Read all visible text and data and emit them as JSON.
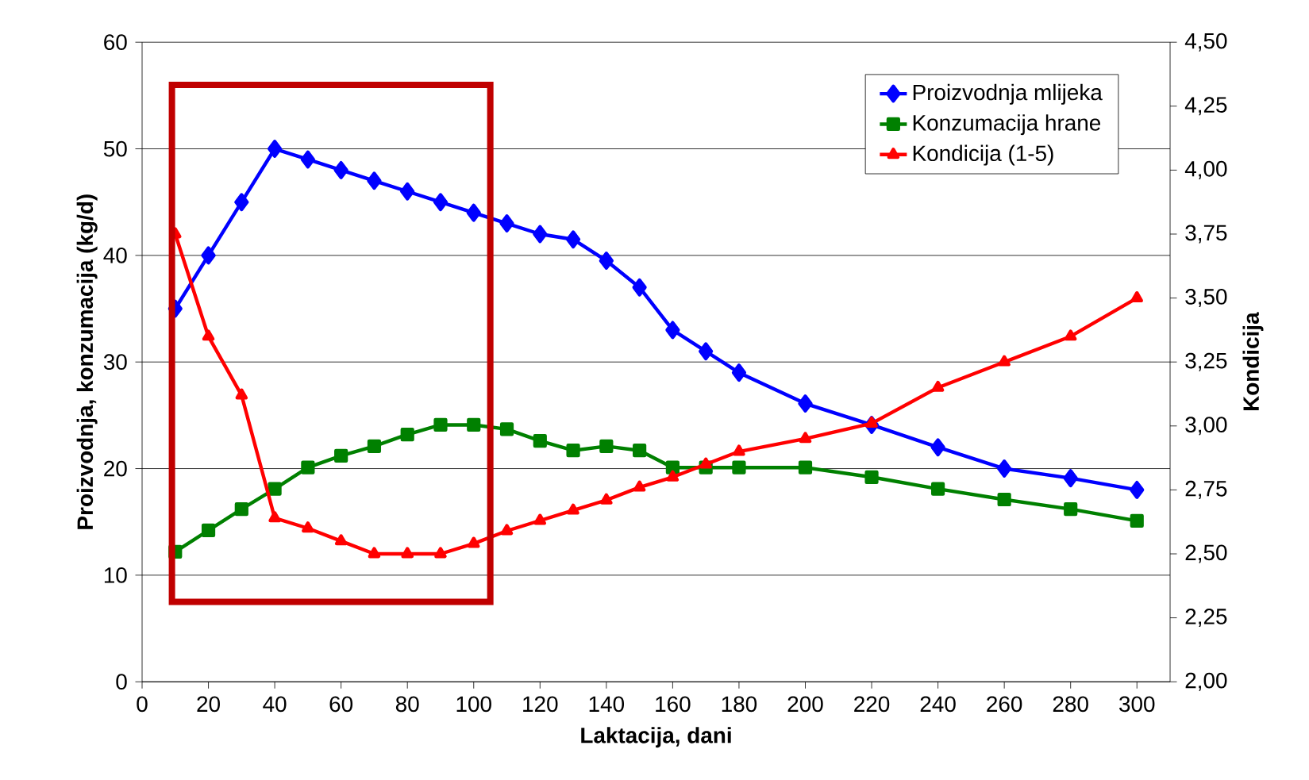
{
  "chart_data": {
    "type": "line",
    "xlabel": "Laktacija, dani",
    "ylabel": "Proizvodnja, konzumacija (kg/d)",
    "y2label": "Kondicija",
    "x": [
      10,
      20,
      30,
      40,
      50,
      60,
      70,
      80,
      90,
      100,
      110,
      120,
      130,
      140,
      150,
      160,
      170,
      180,
      200,
      220,
      240,
      260,
      280,
      300
    ],
    "series": [
      {
        "name": "Proizvodnja mlijeka",
        "color": "#0000ff",
        "marker": "diamond",
        "values": [
          35,
          40,
          45,
          50,
          49,
          48,
          47,
          46,
          45,
          44,
          43,
          42,
          41.5,
          39.5,
          37,
          33,
          31,
          29,
          26.1,
          24.1,
          22,
          20,
          19.1,
          18
        ]
      },
      {
        "name": "Konzumacija hrane",
        "color": "#008000",
        "marker": "square",
        "values": [
          12.2,
          14.2,
          16.2,
          18.1,
          20.1,
          21.2,
          22.1,
          23.2,
          24.1,
          24.1,
          23.7,
          22.6,
          21.7,
          22.1,
          21.7,
          20.1,
          20.1,
          20.1,
          20.1,
          19.2,
          18.1,
          17.1,
          16.2,
          15.1
        ]
      },
      {
        "name": "Kondicija (1-5)",
        "color": "#ff0000",
        "marker": "triangle",
        "axis": "y2",
        "values": [
          3.75,
          3.35,
          3.12,
          2.64,
          2.6,
          2.55,
          2.5,
          2.5,
          2.5,
          2.54,
          2.59,
          2.63,
          2.67,
          2.71,
          2.76,
          2.8,
          2.85,
          2.9,
          2.95,
          3.01,
          3.15,
          3.25,
          3.35,
          3.5
        ]
      }
    ],
    "xlim": [
      0,
      310
    ],
    "xticks": [
      0,
      20,
      40,
      60,
      80,
      100,
      120,
      140,
      160,
      180,
      200,
      220,
      240,
      260,
      280,
      300
    ],
    "ylim": [
      0,
      60
    ],
    "yticks": [
      0,
      10,
      20,
      30,
      40,
      50,
      60
    ],
    "y2lim": [
      2,
      4.5
    ],
    "y2ticks": [
      {
        "value": 2,
        "label": "2,00"
      },
      {
        "value": 2.25,
        "label": "2,25"
      },
      {
        "value": 2.5,
        "label": "2,50"
      },
      {
        "value": 2.75,
        "label": "2,75"
      },
      {
        "value": 3,
        "label": "3,00"
      },
      {
        "value": 3.25,
        "label": "3,25"
      },
      {
        "value": 3.5,
        "label": "3,50"
      },
      {
        "value": 3.75,
        "label": "3,75"
      },
      {
        "value": 4,
        "label": "4,00"
      },
      {
        "value": 4.25,
        "label": "4,25"
      },
      {
        "value": 4.5,
        "label": "4,50"
      }
    ],
    "grid": "y",
    "legend": "top right",
    "line_style": "solid"
  }
}
